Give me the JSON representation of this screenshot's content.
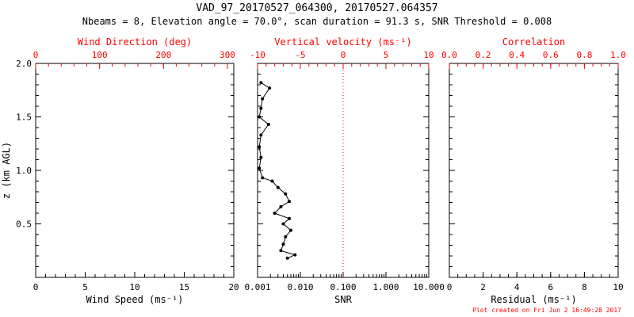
{
  "chart_data": {
    "type": "line",
    "title": "VAD_97_20170527_064300, 20170527.064357",
    "subtitle": "Nbeams = 8, Elevation angle = 70.0°, scan duration = 91.3 s, SNR Threshold = 0.008",
    "footer": "Plot created on Fri Jun  2 16:49:28 2017",
    "colors": {
      "axis": "#000000",
      "secondary_axis": "#ff0000",
      "data": "#000000"
    },
    "y_axis": {
      "label": "z (km AGL)",
      "range": [
        0,
        2.0
      ],
      "ticks": [
        0.5,
        1.0,
        1.5,
        2.0
      ],
      "tick_labels": [
        "0.5",
        "1.0",
        "1.5",
        "2.0"
      ],
      "minor_step": 0.1
    },
    "panels": [
      {
        "name": "wind",
        "bottom_axis": {
          "label": "Wind Speed (ms⁻¹)",
          "scale": "linear",
          "range": [
            0,
            20
          ],
          "ticks": [
            0,
            5,
            10,
            15,
            20
          ],
          "minor_step": 1
        },
        "top_axis": {
          "label": "Wind Direction (deg)",
          "scale": "linear",
          "range": [
            0,
            310
          ],
          "ticks": [
            0,
            100,
            200,
            300
          ],
          "minor_step": 20
        },
        "series": []
      },
      {
        "name": "snr",
        "bottom_axis": {
          "label": "SNR",
          "scale": "log",
          "range": [
            0.001,
            10
          ],
          "ticks": [
            0.001,
            0.01,
            0.1,
            1,
            10
          ],
          "tick_labels": [
            "0.001",
            "0.010",
            "0.100",
            "1.000",
            "10.000"
          ]
        },
        "top_axis": {
          "label": "Vertical velocity (ms⁻¹)",
          "scale": "linear",
          "range": [
            -10,
            10
          ],
          "ticks": [
            -10,
            -5,
            0,
            5,
            10
          ],
          "minor_step": 1
        },
        "reference_line": {
          "value": 0.1,
          "axis": "bottom",
          "meaning": "zero vertical velocity"
        },
        "series": [
          {
            "name": "snr-profile",
            "points": [
              [
                0.0012,
                1.82
              ],
              [
                0.0019,
                1.77
              ],
              [
                0.0013,
                1.67
              ],
              [
                0.0012,
                1.58
              ],
              [
                0.0011,
                1.5
              ],
              [
                0.0018,
                1.43
              ],
              [
                0.0012,
                1.33
              ],
              [
                0.0011,
                1.22
              ],
              [
                0.0012,
                1.12
              ],
              [
                0.0011,
                1.02
              ],
              [
                0.0013,
                0.93
              ],
              [
                0.0022,
                0.9
              ],
              [
                0.003,
                0.84
              ],
              [
                0.0045,
                0.78
              ],
              [
                0.0055,
                0.71
              ],
              [
                0.0035,
                0.66
              ],
              [
                0.0025,
                0.6
              ],
              [
                0.0055,
                0.55
              ],
              [
                0.004,
                0.5
              ],
              [
                0.006,
                0.44
              ],
              [
                0.0045,
                0.38
              ],
              [
                0.004,
                0.31
              ],
              [
                0.0035,
                0.25
              ],
              [
                0.0075,
                0.21
              ],
              [
                0.005,
                0.18
              ]
            ]
          }
        ]
      },
      {
        "name": "residual",
        "bottom_axis": {
          "label": "Residual (ms⁻¹)",
          "scale": "linear",
          "range": [
            0,
            10
          ],
          "ticks": [
            0,
            2,
            4,
            6,
            8,
            10
          ],
          "minor_step": 0.5
        },
        "top_axis": {
          "label": "Correlation",
          "scale": "linear",
          "range": [
            0,
            1
          ],
          "ticks": [
            0,
            0.2,
            0.4,
            0.6,
            0.8,
            1
          ],
          "tick_labels": [
            "0.0",
            "0.2",
            "0.4",
            "0.6",
            "0.8",
            "1.0"
          ],
          "minor_step": 0.05
        },
        "series": []
      }
    ]
  }
}
